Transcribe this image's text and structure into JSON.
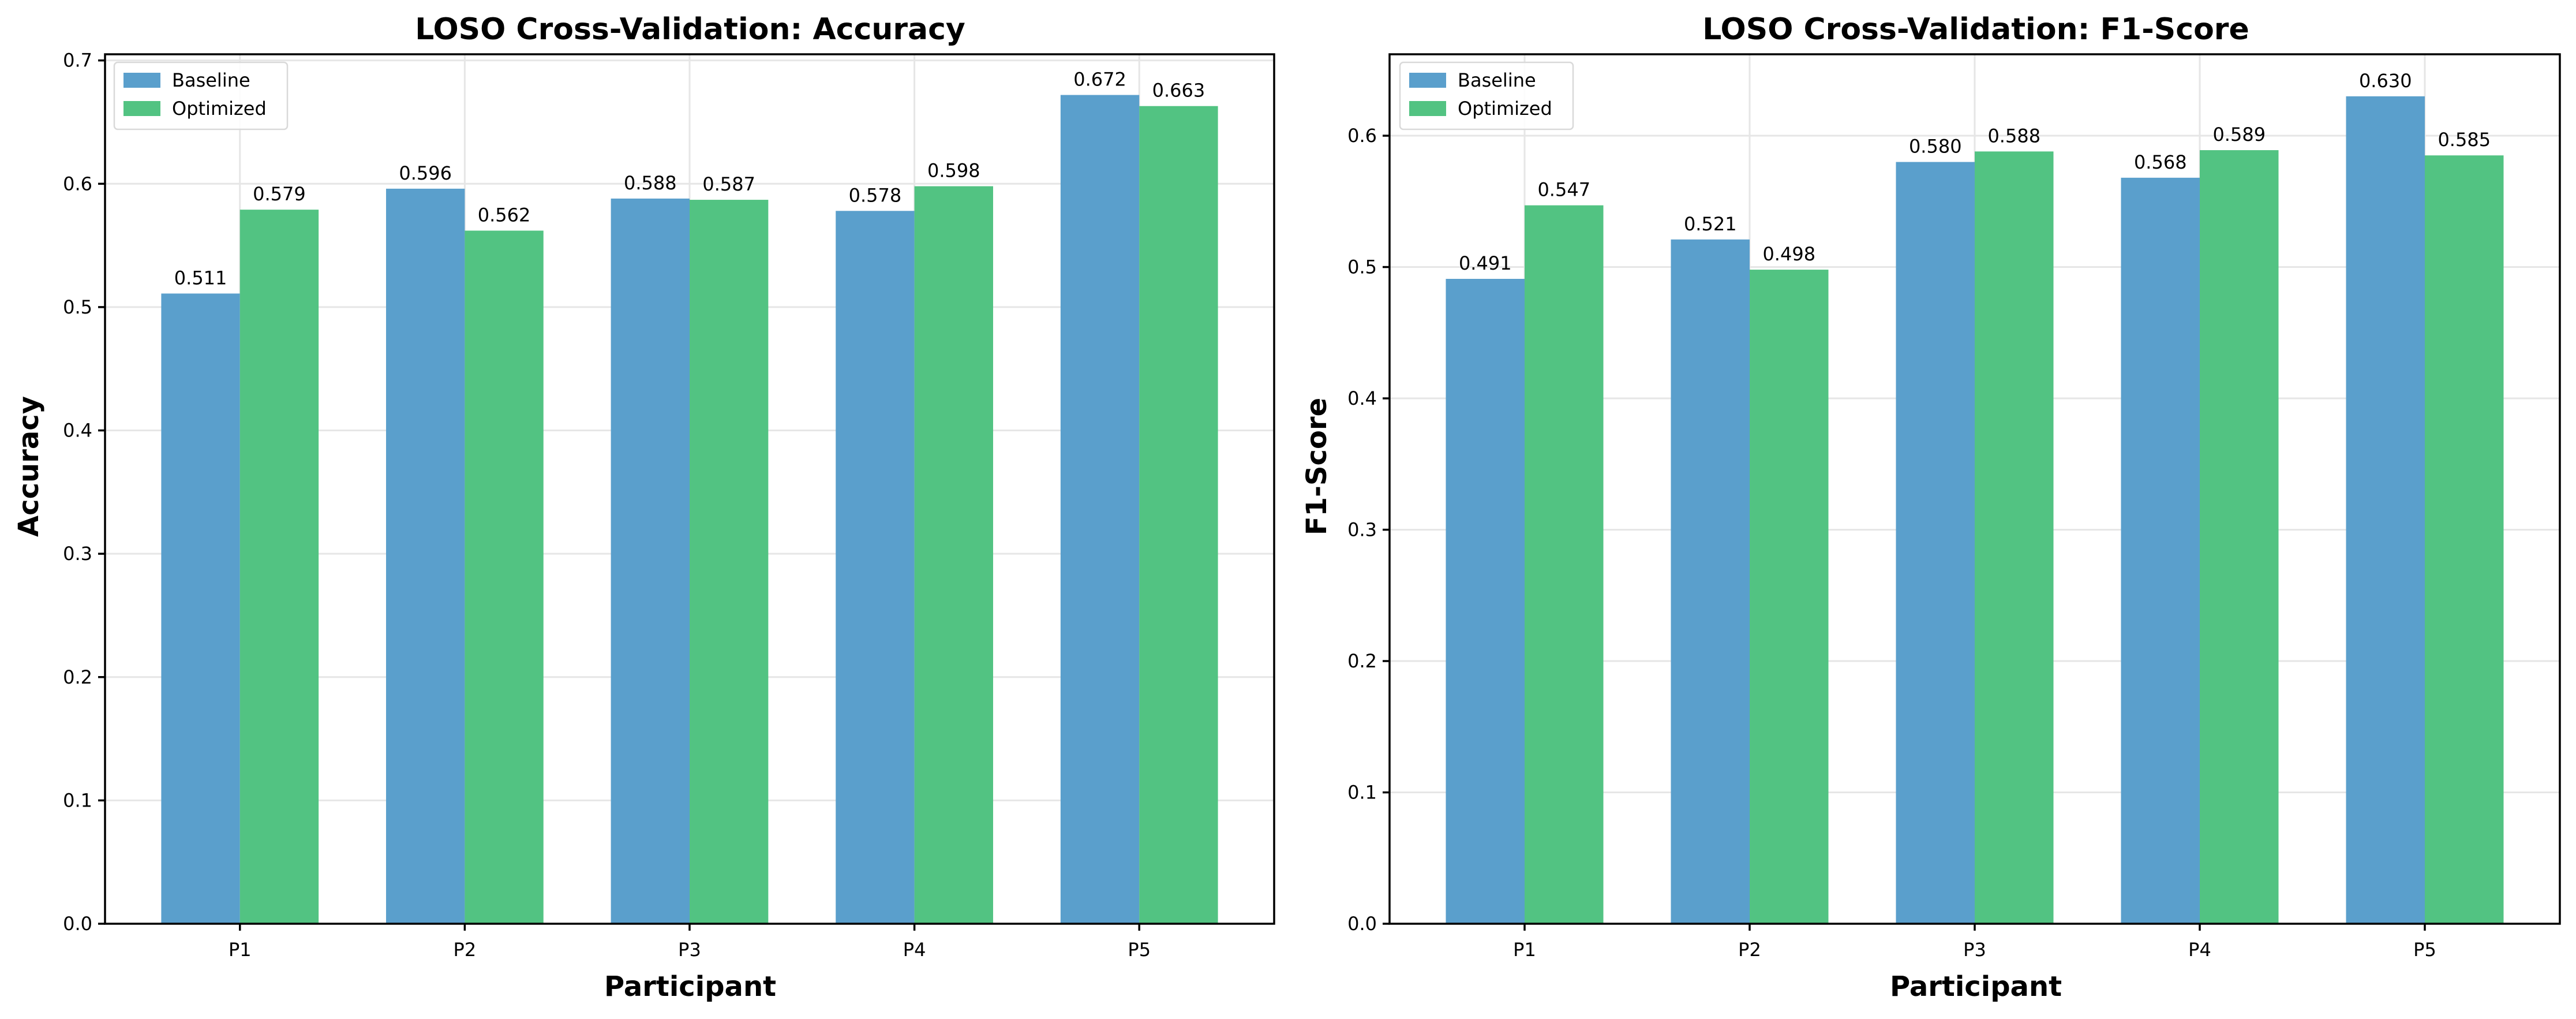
{
  "chart_data": [
    {
      "type": "bar",
      "title": "LOSO Cross-Validation: Accuracy",
      "xlabel": "Participant",
      "ylabel": "Accuracy",
      "categories": [
        "P1",
        "P2",
        "P3",
        "P4",
        "P5"
      ],
      "series": [
        {
          "name": "Baseline",
          "values": [
            0.511,
            0.596,
            0.588,
            0.578,
            0.672
          ],
          "color": "#5a9fcc"
        },
        {
          "name": "Optimized",
          "values": [
            0.579,
            0.562,
            0.587,
            0.598,
            0.663
          ],
          "color": "#52c382"
        }
      ],
      "ylim": [
        0,
        0.705
      ],
      "yticks": [
        0.0,
        0.1,
        0.2,
        0.3,
        0.4,
        0.5,
        0.6,
        0.7
      ],
      "ytick_labels": [
        "0.0",
        "0.1",
        "0.2",
        "0.3",
        "0.4",
        "0.5",
        "0.6",
        "0.7"
      ],
      "grid": true,
      "legend": "top-left"
    },
    {
      "type": "bar",
      "title": "LOSO Cross-Validation: F1-Score",
      "xlabel": "Participant",
      "ylabel": "F1-Score",
      "categories": [
        "P1",
        "P2",
        "P3",
        "P4",
        "P5"
      ],
      "series": [
        {
          "name": "Baseline",
          "values": [
            0.491,
            0.521,
            0.58,
            0.568,
            0.63
          ],
          "color": "#5a9fcc"
        },
        {
          "name": "Optimized",
          "values": [
            0.547,
            0.498,
            0.588,
            0.589,
            0.585
          ],
          "color": "#52c382"
        }
      ],
      "ylim": [
        0,
        0.662
      ],
      "yticks": [
        0.0,
        0.1,
        0.2,
        0.3,
        0.4,
        0.5,
        0.6
      ],
      "ytick_labels": [
        "0.0",
        "0.1",
        "0.2",
        "0.3",
        "0.4",
        "0.5",
        "0.6"
      ],
      "grid": true,
      "legend": "top-left"
    }
  ]
}
